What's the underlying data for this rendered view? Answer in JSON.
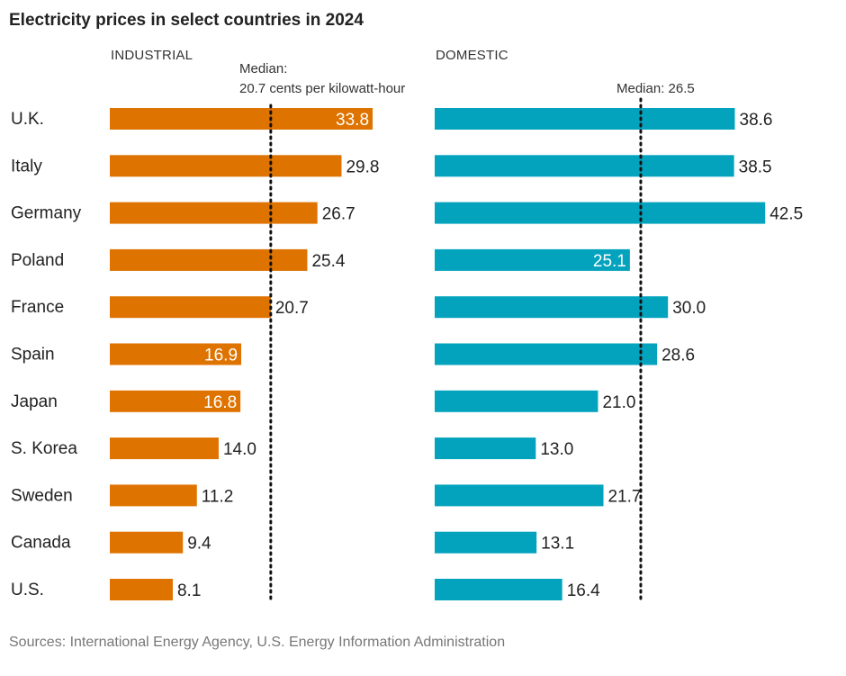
{
  "chart_data": [
    {
      "type": "bar",
      "orientation": "horizontal",
      "title": "Electricity prices in select countries in 2024",
      "panel": "INDUSTRIAL",
      "categories": [
        "U.K.",
        "Italy",
        "Germany",
        "Poland",
        "France",
        "Spain",
        "Japan",
        "S. Korea",
        "Sweden",
        "Canada",
        "U.S."
      ],
      "values": [
        33.8,
        29.8,
        26.7,
        25.4,
        20.7,
        16.9,
        16.8,
        14.0,
        11.2,
        9.4,
        8.1
      ],
      "labels": [
        "33.8",
        "29.8",
        "26.7",
        "25.4",
        "20.7",
        "16.9",
        "16.8",
        "14.0",
        "11.2",
        "9.4",
        "8.1"
      ],
      "label_inside": [
        true,
        false,
        false,
        false,
        false,
        true,
        true,
        false,
        false,
        false,
        false
      ],
      "median": 20.7,
      "median_label_line1": "Median:",
      "median_label_line2": "20.7 cents per kilowatt-hour",
      "color": "#DE7300",
      "xlim": [
        0,
        45
      ]
    },
    {
      "type": "bar",
      "orientation": "horizontal",
      "panel": "DOMESTIC",
      "categories": [
        "U.K.",
        "Italy",
        "Germany",
        "Poland",
        "France",
        "Spain",
        "Japan",
        "S. Korea",
        "Sweden",
        "Canada",
        "U.S."
      ],
      "values": [
        38.6,
        38.5,
        42.5,
        25.1,
        30.0,
        28.6,
        21.0,
        13.0,
        21.7,
        13.1,
        16.4
      ],
      "labels": [
        "38.6",
        "38.5",
        "42.5",
        "25.1",
        "30.0",
        "28.6",
        "21.0",
        "13.0",
        "21.7",
        "13.1",
        "16.4"
      ],
      "label_inside": [
        false,
        false,
        false,
        true,
        false,
        false,
        false,
        false,
        false,
        false,
        false
      ],
      "median": 26.5,
      "median_label": "Median: 26.5",
      "color": "#03A3BE",
      "xlim": [
        0,
        45
      ]
    }
  ],
  "source": "Sources: International Energy Agency, U.S. Energy Information Administration"
}
